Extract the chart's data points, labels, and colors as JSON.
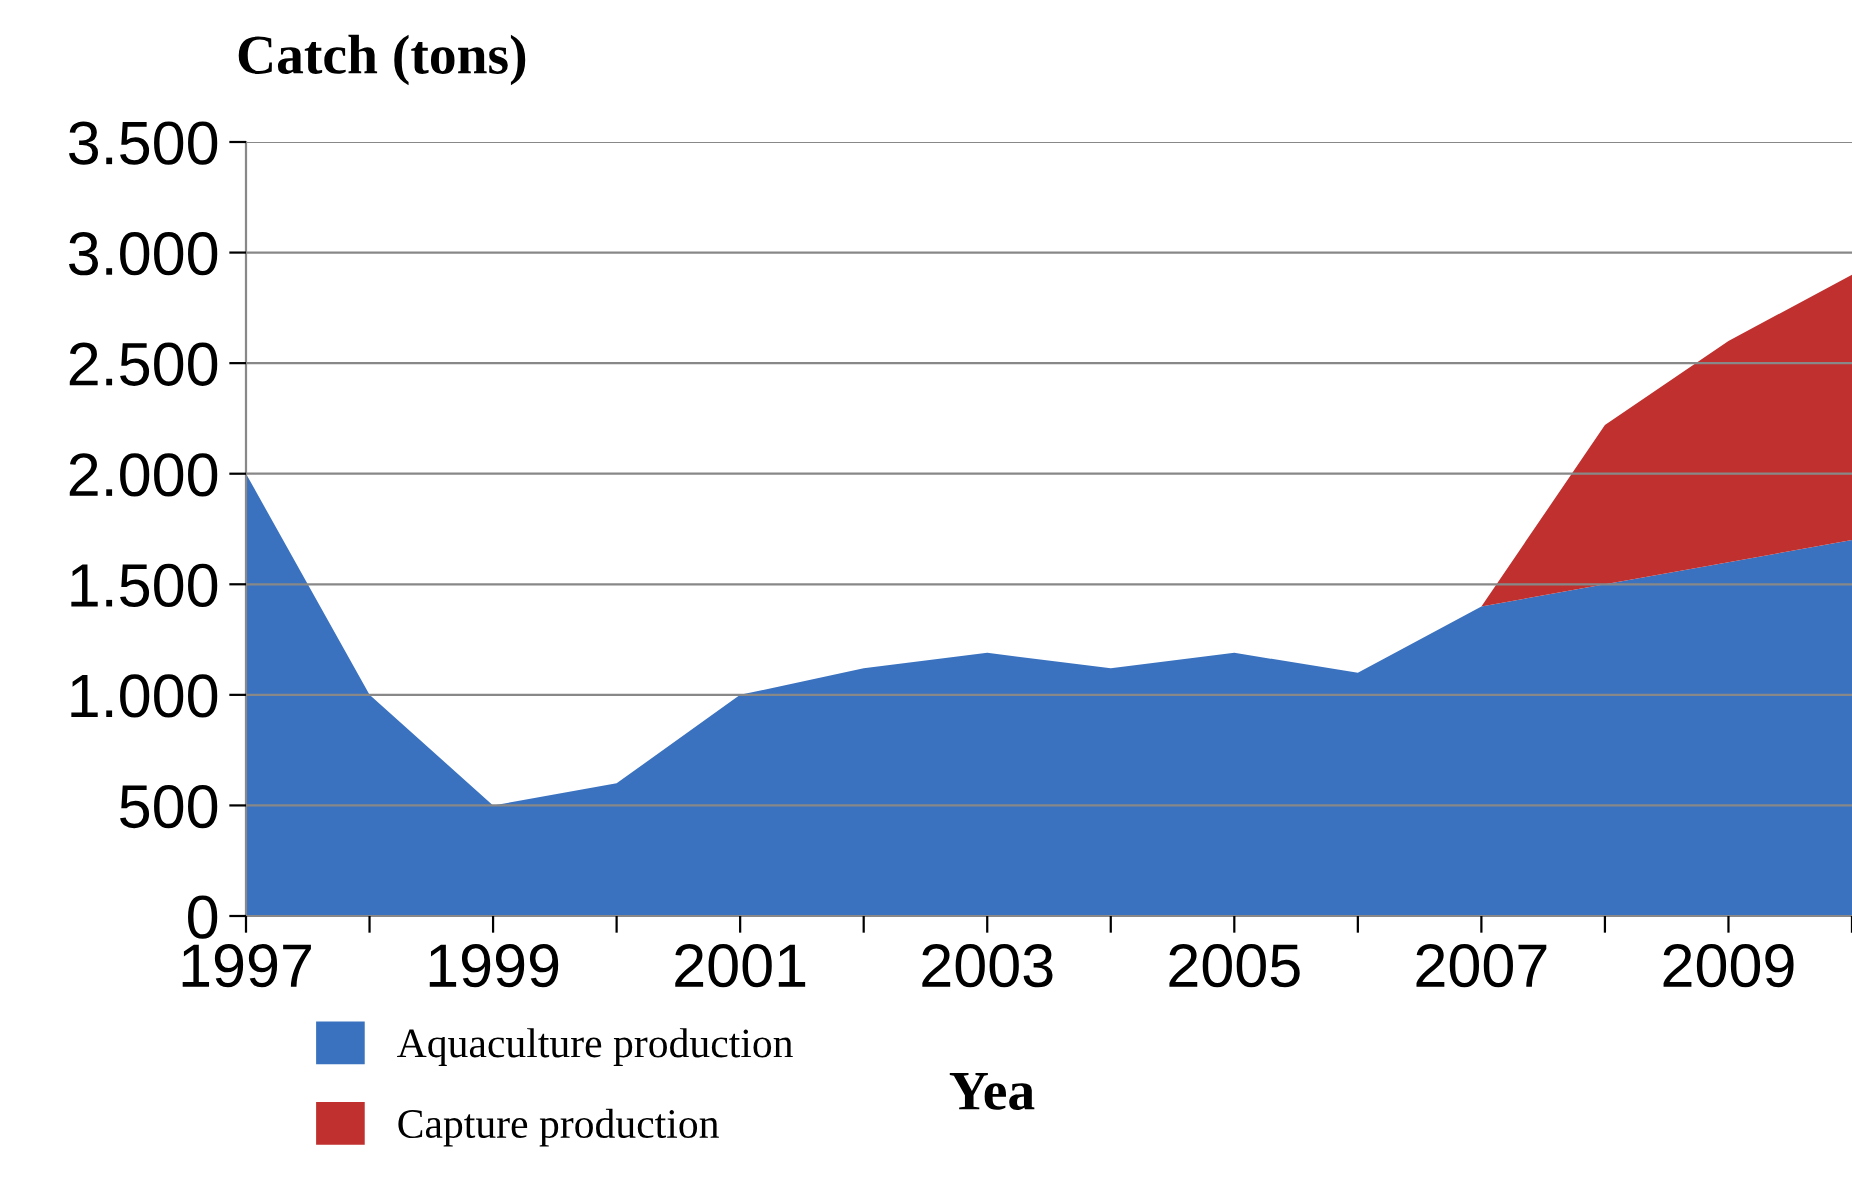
{
  "chart_data": {
    "type": "area",
    "stacked": true,
    "ylabel": "Catch (tons)",
    "xlabel": "Yea",
    "x": [
      1997,
      1998,
      1999,
      2000,
      2001,
      2002,
      2003,
      2004,
      2005,
      2006,
      2007,
      2008,
      2009,
      2010
    ],
    "series": [
      {
        "name": "Aquaculture production",
        "color": "#3a72c0",
        "values": [
          2000,
          1000,
          500,
          600,
          1000,
          1120,
          1190,
          1120,
          1190,
          1100,
          1400,
          1500,
          1600,
          1700
        ]
      },
      {
        "name": "Capture production",
        "color": "#c0302e",
        "values": [
          0,
          0,
          0,
          0,
          0,
          0,
          0,
          0,
          0,
          0,
          0,
          720,
          1000,
          1200
        ]
      }
    ],
    "xlim": [
      1997,
      2010
    ],
    "xticks": [
      1997,
      {
        "value": 1998,
        "label": null
      },
      1999,
      {
        "value": 2000,
        "label": null
      },
      2001,
      {
        "value": 2002,
        "label": null
      },
      2003,
      {
        "value": 2004,
        "label": null
      },
      2005,
      {
        "value": 2006,
        "label": null
      },
      2007,
      {
        "value": 2008,
        "label": null
      },
      2009,
      {
        "value": 2010,
        "label": null
      }
    ],
    "ylim": [
      0,
      3500
    ],
    "yticks": [
      0,
      500,
      {
        "value": 1000,
        "label": "1.000"
      },
      {
        "value": 1500,
        "label": "1.500"
      },
      {
        "value": 2000,
        "label": "2.000"
      },
      {
        "value": 2500,
        "label": "2.500"
      },
      {
        "value": 3000,
        "label": "3.000"
      },
      {
        "value": 3500,
        "label": "3.500"
      }
    ],
    "grid": "y",
    "legend": "bottom left"
  }
}
